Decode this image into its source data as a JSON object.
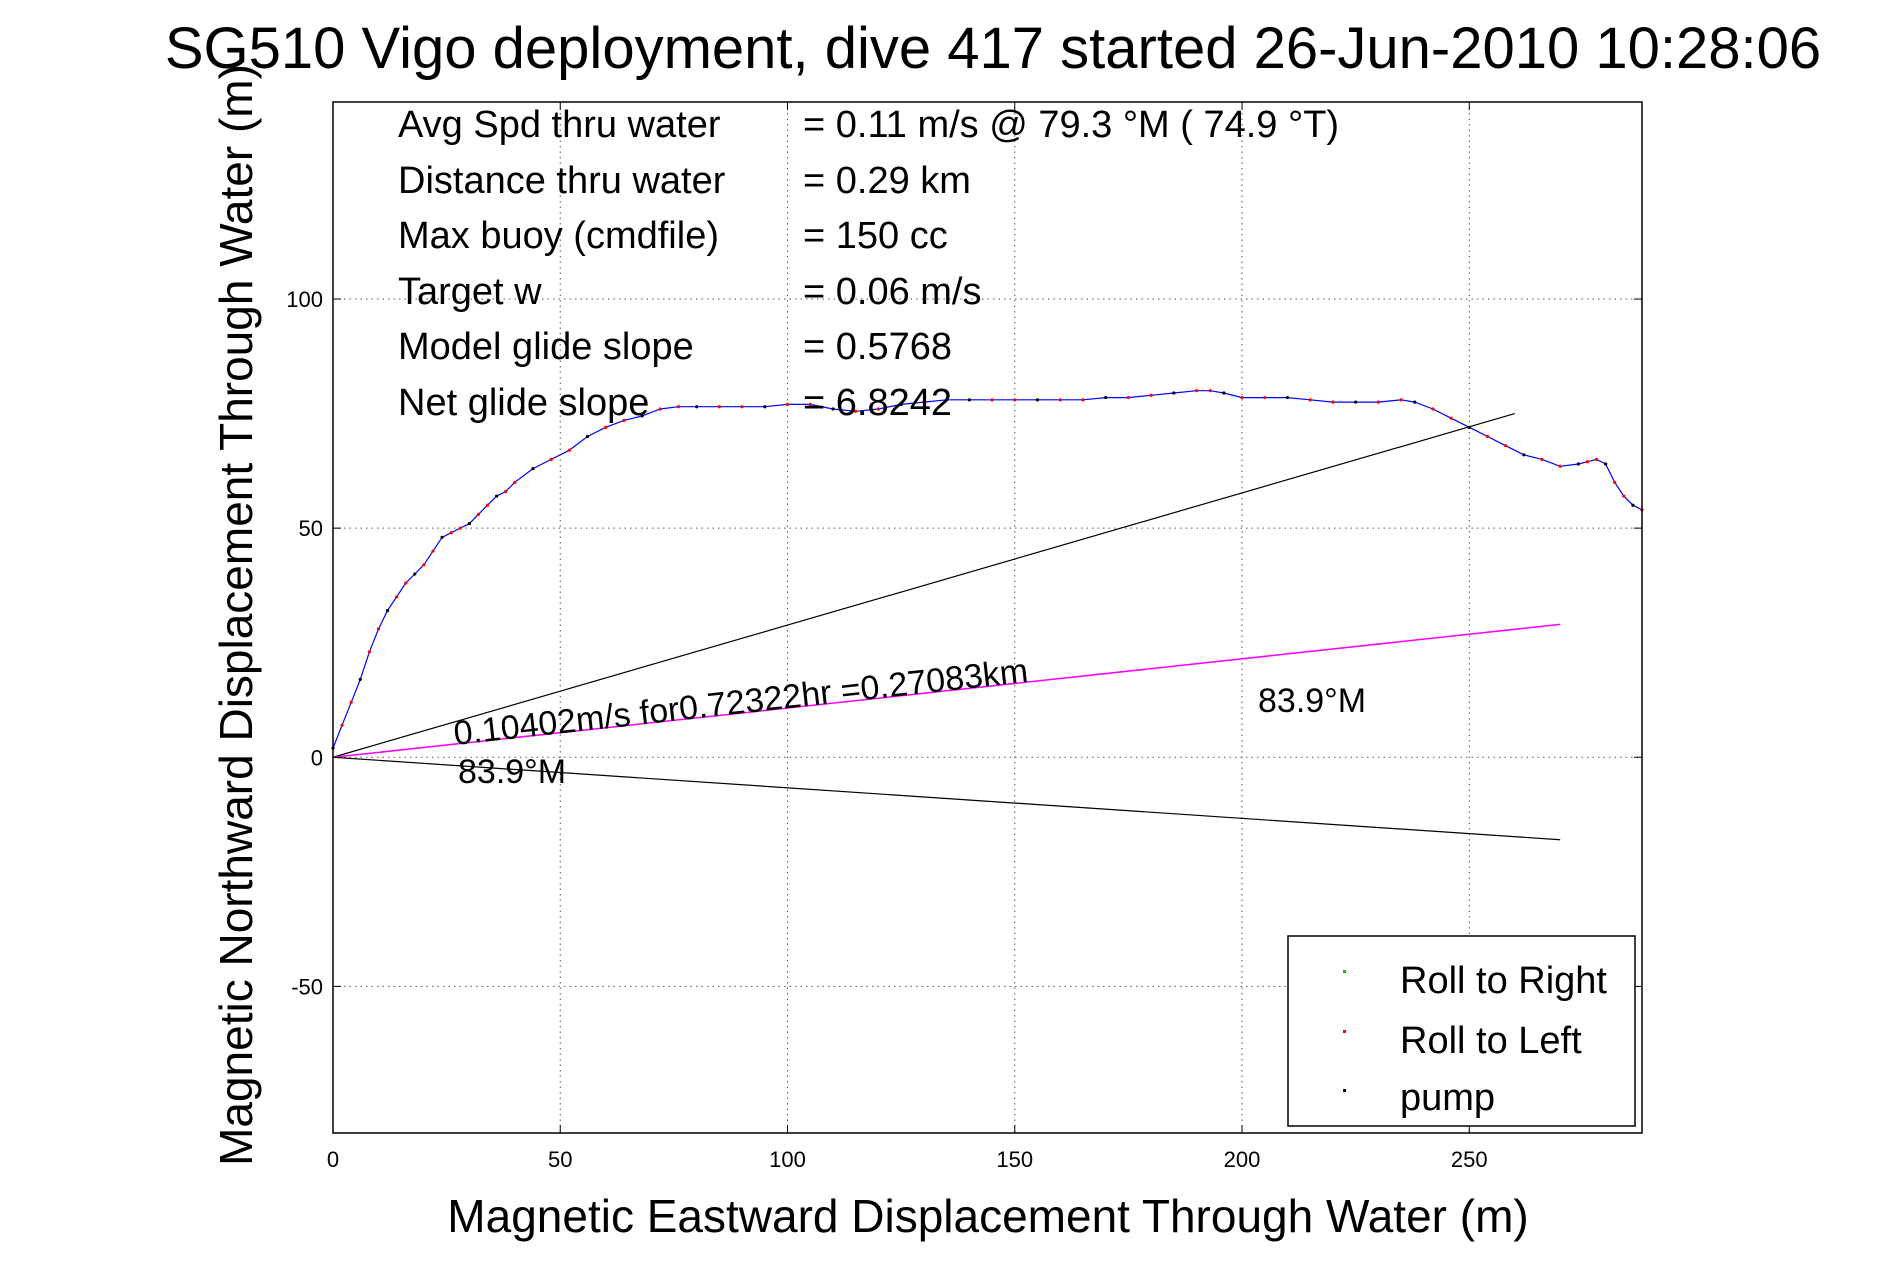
{
  "chart_data": {
    "type": "line",
    "title": "SG510 Vigo deployment, dive 417 started 26-Jun-2010 10:28:06",
    "xlabel": "Magnetic Eastward Displacement Through Water (m)",
    "ylabel": "Magnetic Northward Displacement Through Water (m)",
    "xlim": [
      0,
      288
    ],
    "ylim": [
      -82,
      143
    ],
    "xticks": [
      "0",
      "50",
      "100",
      "150",
      "200",
      "250"
    ],
    "yticks": [
      "-50",
      "0",
      "50",
      "100"
    ],
    "grid": true,
    "legend_position": "bottom-right",
    "legend": [
      "Roll to Right",
      "Roll to Left",
      "pump"
    ],
    "colors": {
      "track": "#0000ff",
      "roll_right": "#00cc00",
      "roll_left": "#ff0000",
      "pump": "#000000",
      "ref_lines": "#000000",
      "net_line": "#ff00ff"
    },
    "info_lines": [
      {
        "label": "Avg Spd thru water",
        "value": "=  0.11 m/s @  79.3 °M ( 74.9 °T)"
      },
      {
        "label": "Distance thru water",
        "value": "=  0.29 km"
      },
      {
        "label": "Max buoy (cmdfile)",
        "value": "= 150 cc"
      },
      {
        "label": "Target w",
        "value": "= 0.06 m/s"
      },
      {
        "label": "Model glide slope",
        "value": "= 0.5768"
      },
      {
        "label": "Net glide slope",
        "value": "= 6.8242"
      }
    ],
    "annotations": {
      "net_line": "0.10402m/s for0.72322hr =0.27083km",
      "heading_low": "83.9°M",
      "heading_high": "83.9°M"
    },
    "track": {
      "x": [
        0,
        2,
        4,
        6,
        8,
        10,
        12,
        14,
        16,
        18,
        20,
        22,
        24,
        26,
        28,
        30,
        32,
        34,
        36,
        38,
        40,
        44,
        48,
        52,
        56,
        60,
        64,
        68,
        72,
        76,
        80,
        85,
        90,
        95,
        100,
        105,
        110,
        115,
        120,
        125,
        130,
        135,
        140,
        145,
        150,
        155,
        160,
        165,
        170,
        175,
        180,
        185,
        190,
        193,
        196,
        200,
        205,
        210,
        215,
        220,
        225,
        230,
        235,
        238,
        242,
        246,
        250,
        254,
        258,
        262,
        266,
        270,
        274,
        276,
        278,
        280,
        282,
        284,
        286,
        288
      ],
      "y": [
        2,
        7,
        12,
        17,
        23,
        28,
        32,
        35,
        38,
        40,
        42,
        45,
        48,
        49,
        50,
        51,
        53,
        55,
        57,
        58,
        60,
        63,
        65,
        67,
        70,
        72,
        73.5,
        74.5,
        76,
        76.5,
        76.5,
        76.5,
        76.5,
        76.5,
        77,
        77,
        76,
        75.5,
        76,
        77,
        77.5,
        78,
        78,
        78,
        78,
        78,
        78,
        78,
        78.5,
        78.5,
        79,
        79.5,
        80,
        80,
        79.5,
        78.5,
        78.5,
        78.5,
        78,
        77.5,
        77.5,
        77.5,
        78,
        77.5,
        76,
        74,
        72,
        70,
        68,
        66,
        65,
        63.5,
        64,
        64.5,
        65,
        64,
        60,
        57,
        55,
        54
      ]
    },
    "ref_line_upper": {
      "x": [
        0,
        260
      ],
      "y": [
        0,
        75
      ]
    },
    "ref_line_lower": {
      "x": [
        0,
        270
      ],
      "y": [
        0,
        -18
      ]
    },
    "net_line": {
      "x": [
        0,
        270
      ],
      "y": [
        0,
        29
      ]
    }
  }
}
